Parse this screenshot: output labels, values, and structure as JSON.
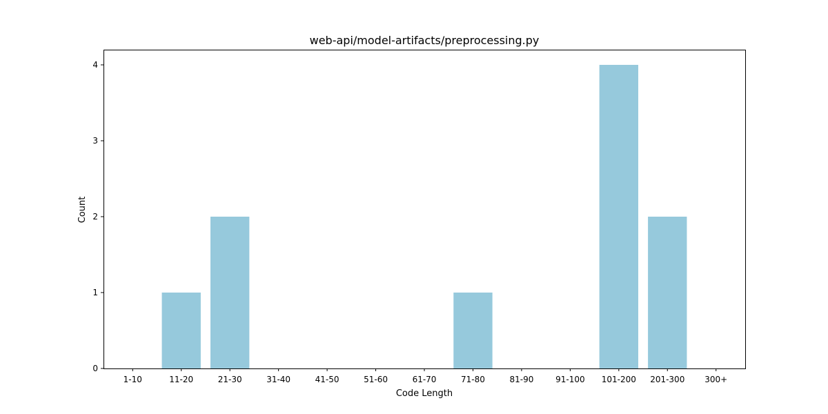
{
  "chart_data": {
    "type": "bar",
    "title": "web-api/model-artifacts/preprocessing.py",
    "xlabel": "Code Length",
    "ylabel": "Count",
    "categories": [
      "1-10",
      "11-20",
      "21-30",
      "31-40",
      "41-50",
      "51-60",
      "61-70",
      "71-80",
      "81-90",
      "91-100",
      "101-200",
      "201-300",
      "300+"
    ],
    "values": [
      0,
      1,
      2,
      0,
      0,
      0,
      0,
      1,
      0,
      0,
      4,
      2,
      0
    ],
    "ylim": [
      0,
      4.2
    ],
    "yticks": [
      0,
      1,
      2,
      3,
      4
    ],
    "grid": false,
    "bar_color": "#96c9dc"
  }
}
